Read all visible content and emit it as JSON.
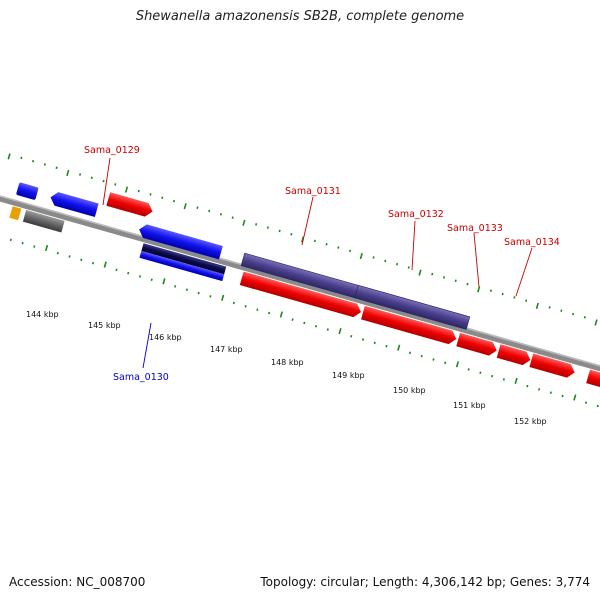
{
  "title": "Shewanella amazonensis SB2B, complete genome",
  "footer": {
    "accession": "Accession: NC_008700",
    "summary": "Topology: circular; Length: 4,306,142 bp; Genes: 3,774"
  },
  "colors": {
    "forward_gene": "#ee0000",
    "reverse_gene": "#1111ee",
    "rna_feature": "#4a3f8c",
    "other_feature": "#666666",
    "backbone": "#888888",
    "tick": "#1a8a1a",
    "forward_label": "#cc0000",
    "reverse_label": "#0000cc"
  },
  "scale_labels": [
    "144 kbp",
    "145 kbp",
    "146 kbp",
    "147 kbp",
    "148 kbp",
    "149 kbp",
    "150 kbp",
    "151 kbp",
    "152 kbp"
  ],
  "gene_labels": {
    "sama_0129": "Sama_0129",
    "sama_0130": "Sama_0130",
    "sama_0131": "Sama_0131",
    "sama_0132": "Sama_0132",
    "sama_0133": "Sama_0133",
    "sama_0134": "Sama_0134"
  }
}
